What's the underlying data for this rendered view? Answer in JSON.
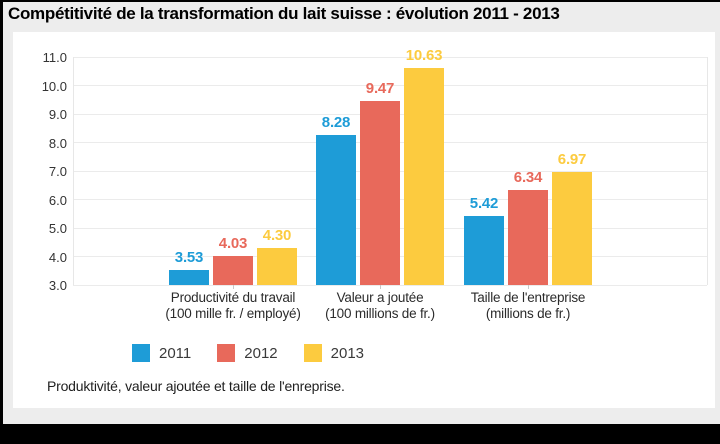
{
  "title": "Compétitivité de la transformation du lait suisse : évolution 2011 - 2013",
  "caption": "Produktivité, valeur ajoutée et taille de l'enreprise.",
  "chart_data": {
    "type": "bar",
    "title": "Compétitivité de la transformation du lait suisse : évolution 2011 - 2013",
    "categories": [
      {
        "label": "Productivité du travail",
        "sublabel": "(100 mille fr. / employé)"
      },
      {
        "label": "Valeur a joutée",
        "sublabel": "(100 millions de fr.)"
      },
      {
        "label": "Taille de l'entreprise",
        "sublabel": "(millions de fr.)"
      }
    ],
    "series": [
      {
        "name": "2011",
        "color": "#1e9cd7",
        "values": [
          3.53,
          8.28,
          5.42
        ],
        "labels": [
          "3.53",
          "8.28",
          "5.42"
        ]
      },
      {
        "name": "2012",
        "color": "#e8695b",
        "values": [
          4.03,
          9.47,
          6.34
        ],
        "labels": [
          "4.03",
          "9.47",
          "6.34"
        ]
      },
      {
        "name": "2013",
        "color": "#fccb3f",
        "values": [
          4.3,
          10.63,
          6.97
        ],
        "labels": [
          "4.30",
          "10.63",
          "6.97"
        ]
      }
    ],
    "ylim": [
      3.0,
      11.0
    ],
    "ytick_labels": [
      "3.0",
      "4.0",
      "5.0",
      "6.0",
      "7.0",
      "8.0",
      "9.0",
      "10.0",
      "11.0"
    ],
    "grid": true,
    "legend_position": "bottom-left"
  }
}
